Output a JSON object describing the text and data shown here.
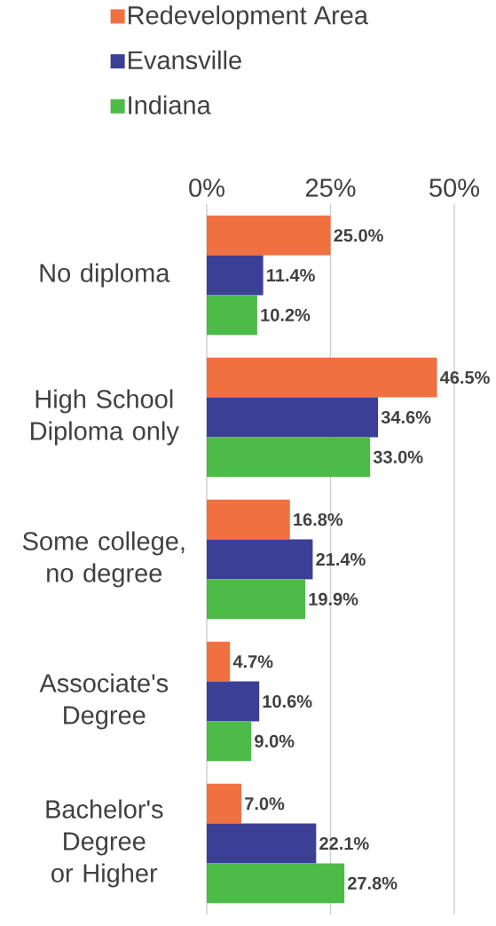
{
  "chart_data": {
    "type": "bar",
    "orientation": "horizontal",
    "categories": [
      "No diploma",
      "High School Diploma only",
      "Some college, no degree",
      "Associate's Degree",
      "Bachelor's Degree or Higher"
    ],
    "series": [
      {
        "name": "Redevelopment Area",
        "color": "#f07040",
        "values": [
          25.0,
          46.5,
          16.8,
          4.7,
          7.0
        ],
        "value_labels": [
          "25.0%",
          "46.5%",
          "16.8%",
          "4.7%",
          "7.0%"
        ]
      },
      {
        "name": "Evansville",
        "color": "#3c3f96",
        "values": [
          11.4,
          34.6,
          21.4,
          10.6,
          22.1
        ],
        "value_labels": [
          "11.4%",
          "34.6%",
          "21.4%",
          "10.6%",
          "22.1%"
        ]
      },
      {
        "name": "Indiana",
        "color": "#4cbb47",
        "values": [
          10.2,
          33.0,
          19.9,
          9.0,
          27.8
        ],
        "value_labels": [
          "10.2%",
          "33.0%",
          "19.9%",
          "9.0%",
          "27.8%"
        ]
      }
    ],
    "xlim": [
      0,
      50
    ],
    "xticks": [
      {
        "value": 0,
        "label": "0%"
      },
      {
        "value": 25,
        "label": "25%"
      },
      {
        "value": 50,
        "label": "50%"
      }
    ],
    "grid": "x",
    "legend": "top left"
  }
}
